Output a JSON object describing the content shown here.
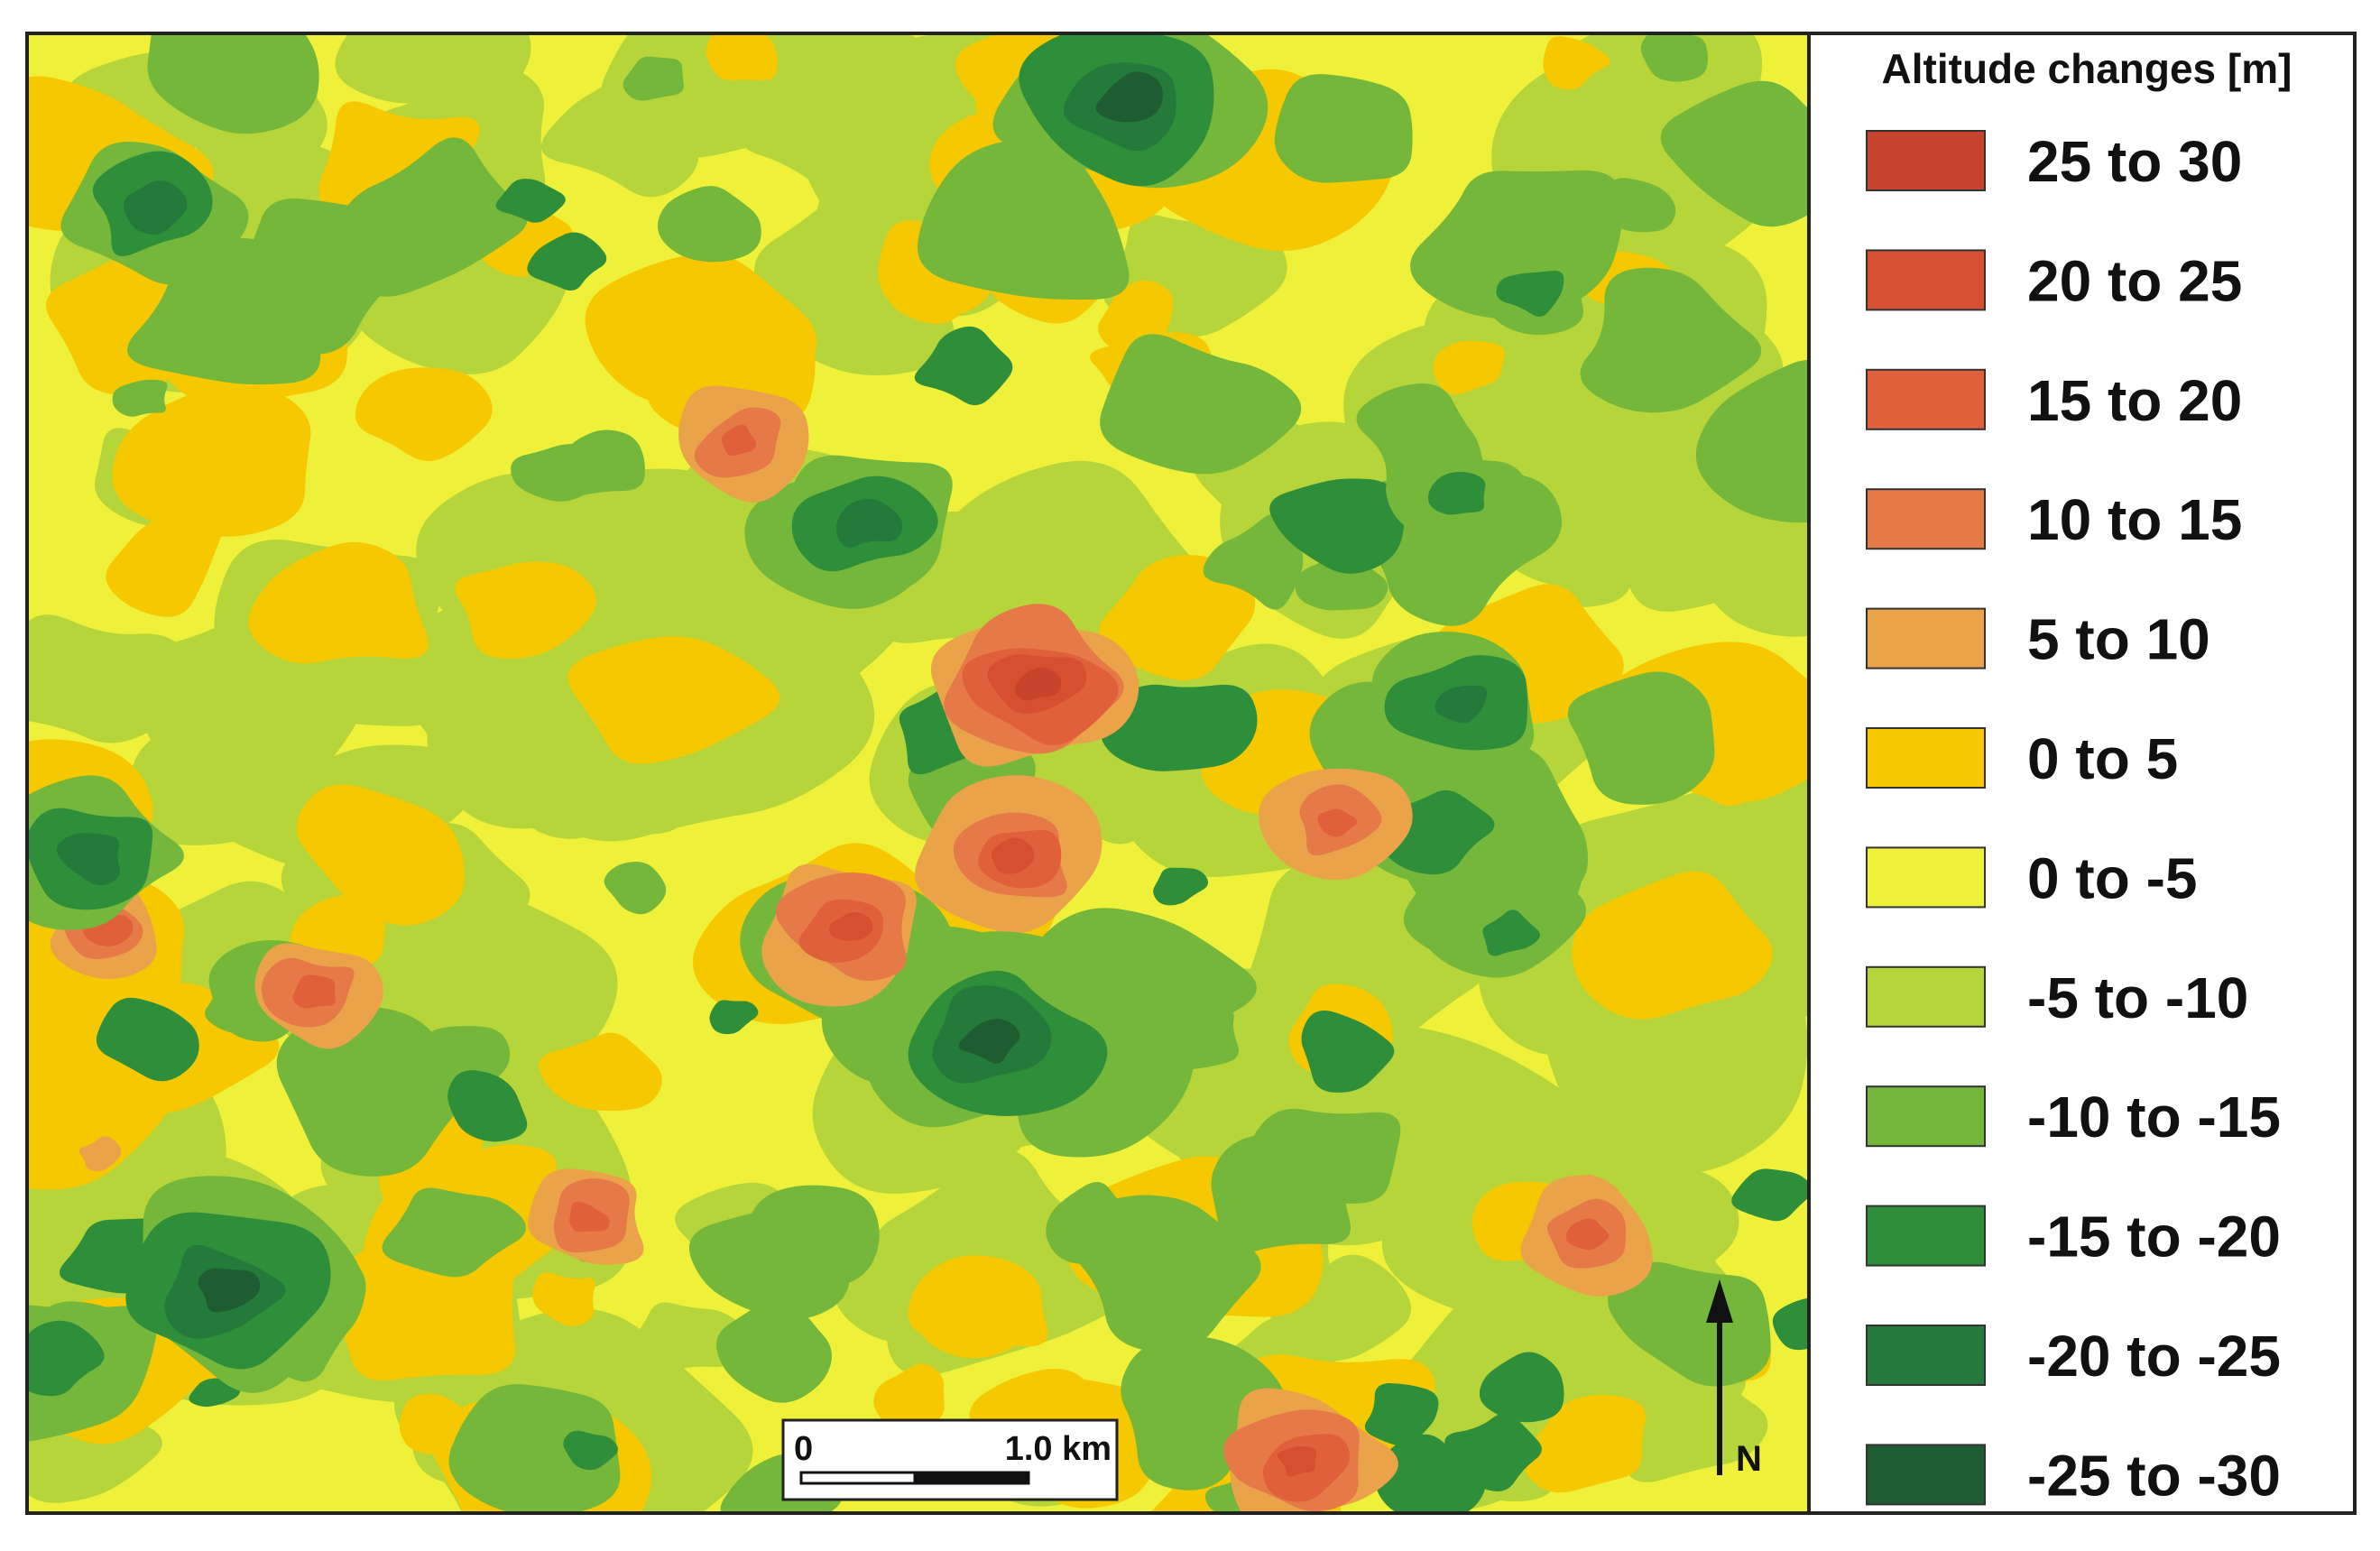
{
  "legend": {
    "title": "Altitude changes [m]",
    "entries": [
      {
        "label": "25 to 30",
        "color": "#c8432b"
      },
      {
        "label": "20 to 25",
        "color": "#d64f30"
      },
      {
        "label": "15 to 20",
        "color": "#df603a"
      },
      {
        "label": "10 to 15",
        "color": "#e57a48"
      },
      {
        "label": "5 to 10",
        "color": "#eba34a"
      },
      {
        "label": "0 to 5",
        "color": "#f5c800"
      },
      {
        "label": "0 to -5",
        "color": "#eef03a"
      },
      {
        "label": "-5 to -10",
        "color": "#b5d53a"
      },
      {
        "label": "-10 to -15",
        "color": "#74b73a"
      },
      {
        "label": "-15 to -20",
        "color": "#2f8e3a"
      },
      {
        "label": "-20 to -25",
        "color": "#237a3a"
      },
      {
        "label": "-25 to -30",
        "color": "#1e5c32"
      }
    ]
  },
  "scale_bar": {
    "start": "0",
    "end": "1.0 km"
  },
  "north_arrow": {
    "label": "N"
  }
}
